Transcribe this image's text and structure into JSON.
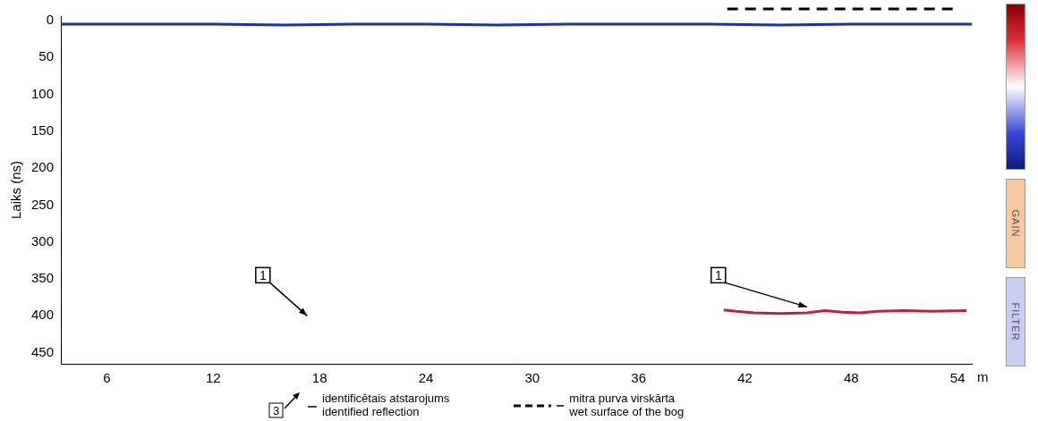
{
  "chart_data": {
    "type": "line",
    "y_label": "Laiks (ns)",
    "x_unit": "m",
    "xlim": [
      3.4,
      54.8
    ],
    "xticks": [
      6,
      12,
      18,
      24,
      30,
      36,
      42,
      48,
      54
    ],
    "ylim": [
      -6,
      465
    ],
    "yticks": [
      0,
      50,
      100,
      150,
      200,
      250,
      300,
      350,
      400,
      450
    ],
    "grid": false,
    "tick_labels": true,
    "series": [
      {
        "color": "#1f2fa8",
        "line_style": "solid",
        "x": [
          3.4,
          8,
          12,
          16,
          20,
          24,
          28,
          32,
          36,
          40,
          44,
          48,
          52,
          54.8
        ],
        "values": [
          5,
          5,
          5,
          6,
          5,
          5,
          6,
          5,
          5,
          5,
          6,
          5,
          5,
          5
        ]
      },
      {
        "color": "#c0203a",
        "line_style": "solid",
        "x": [
          40.8,
          41.5,
          42.5,
          44,
          45.5,
          46.5,
          47.5,
          48.5,
          49.5,
          51,
          52.5,
          54.5
        ],
        "values": [
          392,
          394,
          396,
          397,
          396,
          393,
          395,
          396,
          394,
          393,
          394,
          393
        ]
      }
    ],
    "annotations": [
      {
        "label": "1",
        "x": 14.8,
        "y": 345,
        "arrow_to": [
          17.3,
          400
        ]
      },
      {
        "label": "1",
        "x": 40.5,
        "y": 345,
        "arrow_to": [
          45.5,
          388
        ]
      }
    ],
    "wet_surface": [
      41,
      54
    ],
    "key": [
      {
        "symbol": "3",
        "texts": [
          "identificētais atstarojums",
          "identified reflection"
        ]
      },
      {
        "texts": [
          "mitra purva virskārta",
          "wet surface of the bog"
        ]
      }
    ],
    "panels": [
      "GAIN",
      "FILTER"
    ]
  }
}
